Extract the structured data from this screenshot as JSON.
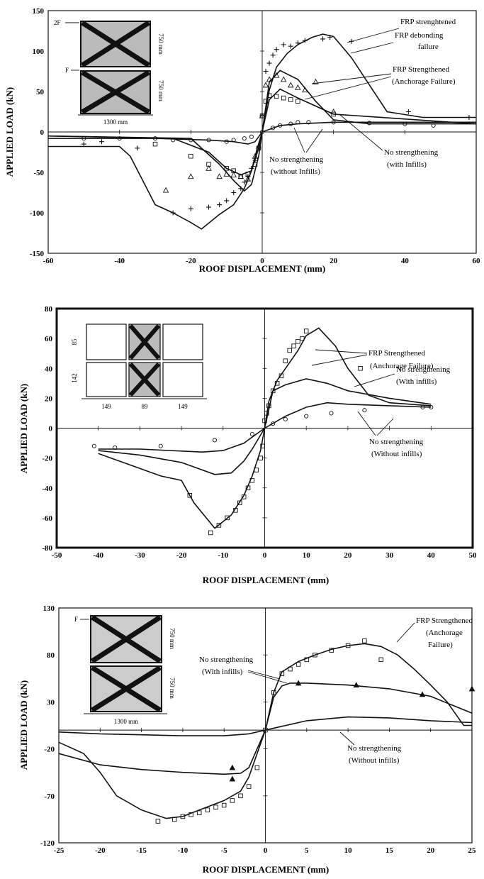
{
  "chart_data": [
    {
      "type": "line",
      "xlabel": "ROOF DISPLACEMENT (mm)",
      "ylabel": "APPLIED LOAD (kN)",
      "xlim": [
        -60,
        60
      ],
      "ylim": [
        -150,
        150
      ],
      "xticks": [
        -60,
        -40,
        -20,
        0,
        20,
        40,
        60
      ],
      "yticks": [
        150,
        100,
        50,
        0,
        -50,
        -100,
        -150
      ],
      "annotations": [
        "FRP strenghtened",
        "FRP debonding",
        "failure",
        "FRP Strengthened",
        "(Anchorage Failure)",
        "No strengthening",
        "(with Infills)",
        "No strengthening",
        "(without Infills)"
      ],
      "inset": {
        "labels": [
          "2F",
          "F",
          "750 mm",
          "750 mm",
          "1300 mm"
        ]
      },
      "series": [
        {
          "marker": "none",
          "x": [
            -60,
            -40,
            -37,
            -30,
            -25,
            -20,
            -17,
            -12,
            -8,
            -5,
            -3,
            -1.5,
            0,
            2,
            4,
            7,
            10,
            14,
            17,
            20,
            25,
            35,
            45,
            60
          ],
          "y": [
            -18,
            -18,
            -30,
            -90,
            -100,
            -112,
            -120,
            -102,
            -90,
            -70,
            -48,
            -22,
            0,
            52,
            80,
            97,
            108,
            117,
            121,
            118,
            92,
            25,
            18,
            18
          ]
        },
        {
          "marker": "none",
          "x": [
            -60,
            -20,
            -12,
            -8,
            -5,
            -3,
            -1,
            0,
            2,
            5,
            10,
            15,
            20,
            30,
            60
          ],
          "y": [
            -5,
            -8,
            -40,
            -60,
            -73,
            -65,
            -30,
            0,
            62,
            76,
            65,
            38,
            15,
            10,
            10
          ]
        },
        {
          "marker": "none",
          "x": [
            -60,
            -25,
            -15,
            -10,
            -6,
            -3,
            -1,
            0,
            2,
            5,
            10,
            20,
            60
          ],
          "y": [
            -5,
            -8,
            -25,
            -45,
            -53,
            -48,
            -20,
            0,
            40,
            53,
            42,
            22,
            10
          ]
        },
        {
          "marker": "none",
          "x": [
            -60,
            -30,
            -15,
            -8,
            -4,
            -2,
            0,
            5,
            10,
            20,
            60
          ],
          "y": [
            -8,
            -8,
            -10,
            -12,
            -15,
            -12,
            0,
            8,
            10,
            12,
            12
          ]
        },
        {
          "marker": "plus",
          "x": [
            -50,
            -45,
            -35,
            -25,
            -20,
            -15,
            -12,
            -10,
            -8,
            -6,
            -5,
            -4,
            -3,
            -2,
            -1,
            0,
            1,
            2,
            3,
            4,
            6,
            8,
            10,
            12,
            17,
            19,
            25,
            41,
            58
          ],
          "y": [
            -15,
            -12,
            -20,
            -100,
            -95,
            -93,
            -90,
            -85,
            -75,
            -70,
            -62,
            -55,
            -45,
            -35,
            -20,
            20,
            75,
            85,
            95,
            102,
            108,
            106,
            110,
            113,
            115,
            117,
            112,
            25,
            18
          ]
        },
        {
          "marker": "triangle",
          "x": [
            -27,
            -20,
            -15,
            -12,
            -10,
            -8,
            -6,
            -4,
            -2,
            0,
            1,
            2,
            4,
            6,
            8,
            10,
            12,
            15,
            20
          ],
          "y": [
            -72,
            -55,
            -45,
            -55,
            -52,
            -53,
            -55,
            -58,
            -30,
            20,
            58,
            65,
            70,
            65,
            58,
            55,
            52,
            62,
            25
          ]
        },
        {
          "marker": "square",
          "x": [
            -30,
            -20,
            -15,
            -10,
            -8,
            -6,
            -4,
            -2,
            -1,
            0,
            1,
            2,
            4,
            6,
            8,
            10,
            20
          ],
          "y": [
            -15,
            -30,
            -40,
            -45,
            -48,
            -55,
            -52,
            -40,
            -20,
            20,
            38,
            45,
            44,
            42,
            40,
            38,
            22
          ]
        },
        {
          "marker": "circle",
          "x": [
            -50,
            -40,
            -30,
            -25,
            -20,
            -15,
            -10,
            -8,
            -5,
            -3,
            0,
            3,
            5,
            8,
            10,
            13,
            20,
            30,
            40,
            48
          ],
          "y": [
            -8,
            -8,
            -8,
            -10,
            -10,
            -10,
            -12,
            -10,
            -8,
            -6,
            0,
            5,
            8,
            10,
            12,
            12,
            12,
            11,
            10,
            8
          ]
        }
      ]
    },
    {
      "type": "line",
      "xlabel": "ROOF DISPLACEMENT (mm)",
      "ylabel": "APPLIED LOAD (kN)",
      "xlim": [
        -50,
        50
      ],
      "ylim": [
        -80,
        80
      ],
      "xticks": [
        -50,
        -40,
        -30,
        -20,
        -10,
        0,
        10,
        20,
        30,
        40,
        50
      ],
      "yticks": [
        80,
        60,
        40,
        20,
        0,
        -20,
        -40,
        -60,
        -80
      ],
      "annotations": [
        "FRP Strengthened",
        "(Anchorage Failure)",
        "No strengthening",
        "(With infills)",
        "No strengthening",
        "(Without infills)"
      ],
      "inset": {
        "labels": [
          "85",
          "142",
          "149",
          "89",
          "149"
        ]
      },
      "series": [
        {
          "marker": "none",
          "x": [
            -40,
            -25,
            -20,
            -17,
            -12,
            -8,
            -5,
            -3,
            -1,
            0,
            1,
            3,
            5,
            8,
            10,
            13,
            17,
            20,
            25,
            30,
            35,
            40
          ],
          "y": [
            -17,
            -32,
            -35,
            -50,
            -67,
            -58,
            -45,
            -32,
            -15,
            0,
            18,
            32,
            40,
            52,
            62,
            67,
            55,
            40,
            22,
            17,
            16,
            15
          ]
        },
        {
          "marker": "none",
          "x": [
            -40,
            -30,
            -20,
            -12,
            -8,
            -5,
            -3,
            0,
            2,
            5,
            10,
            15,
            20,
            30,
            40
          ],
          "y": [
            -15,
            -18,
            -23,
            -31,
            -30,
            -22,
            -14,
            0,
            25,
            29,
            33,
            30,
            25,
            20,
            16
          ]
        },
        {
          "marker": "none",
          "x": [
            -40,
            -30,
            -15,
            -10,
            -5,
            -2,
            0,
            5,
            10,
            15,
            20,
            30,
            40
          ],
          "y": [
            -14,
            -14,
            -16,
            -15,
            -10,
            -4,
            0,
            8,
            14,
            17,
            16,
            15,
            14
          ]
        },
        {
          "marker": "square",
          "x": [
            -18,
            -13,
            -11,
            -9,
            -7,
            -6,
            -5,
            -4,
            -3,
            -2,
            -1,
            -0.5,
            0,
            0.5,
            1,
            2,
            3,
            4,
            5,
            6,
            7,
            8,
            9,
            10,
            23
          ],
          "y": [
            -45,
            -70,
            -65,
            -60,
            -55,
            -50,
            -46,
            -40,
            -35,
            -28,
            -20,
            -12,
            5,
            10,
            15,
            25,
            30,
            35,
            45,
            52,
            55,
            58,
            60,
            65,
            40
          ]
        },
        {
          "marker": "circle",
          "x": [
            -41,
            -36,
            -25,
            -12,
            -3,
            2,
            5,
            10,
            16,
            24,
            38,
            40
          ],
          "y": [
            -12,
            -13,
            -12,
            -8,
            -4,
            3,
            6,
            8,
            10,
            12,
            14,
            14
          ]
        }
      ]
    },
    {
      "type": "line",
      "xlabel": "ROOF DISPLACEMENT (mm)",
      "ylabel": "APPLIED LOAD (kN)",
      "xlim": [
        -25,
        25
      ],
      "ylim": [
        -120,
        130
      ],
      "xticks": [
        -25,
        -20,
        -15,
        -10,
        -5,
        0,
        5,
        10,
        15,
        20,
        25
      ],
      "yticks": [
        130,
        80,
        30,
        -20,
        -70,
        -120
      ],
      "annotations": [
        "FRP Strengthened",
        "(Anchorage",
        "Failure)",
        "No strengthening",
        "(With infills)",
        "No strengthening",
        "(Without infills)"
      ],
      "inset": {
        "labels": [
          "F",
          "750 mm",
          "750 mm",
          "1300 mm"
        ]
      },
      "series": [
        {
          "marker": "none",
          "x": [
            -25,
            -22,
            -20,
            -18,
            -15,
            -12,
            -10,
            -8,
            -5,
            -3,
            -2,
            -1,
            0,
            1,
            2,
            4,
            6,
            8,
            10,
            12,
            14,
            16,
            18,
            20,
            22,
            24,
            25
          ],
          "y": [
            -13,
            -25,
            -45,
            -70,
            -85,
            -94,
            -92,
            -85,
            -75,
            -65,
            -50,
            -25,
            0,
            40,
            62,
            73,
            80,
            86,
            90,
            92,
            89,
            80,
            65,
            48,
            30,
            5,
            5
          ]
        },
        {
          "marker": "none",
          "x": [
            -25,
            -20,
            -15,
            -10,
            -5,
            -3,
            -2,
            -1,
            0,
            1,
            2,
            3,
            5,
            10,
            15,
            20,
            25
          ],
          "y": [
            -25,
            -37,
            -42,
            -45,
            -47,
            -46,
            -40,
            -20,
            0,
            35,
            47,
            50,
            50,
            48,
            44,
            36,
            18
          ]
        },
        {
          "marker": "none",
          "x": [
            -25,
            -20,
            -15,
            -10,
            -5,
            -2,
            0,
            5,
            10,
            15,
            20,
            25
          ],
          "y": [
            -2,
            -4,
            -5,
            -6,
            -6,
            -4,
            0,
            10,
            14,
            13,
            10,
            8
          ]
        },
        {
          "marker": "square",
          "x": [
            -13,
            -11,
            -10,
            -9,
            -8,
            -7,
            -6,
            -5,
            -4,
            -3,
            -2,
            -1,
            0,
            1,
            2,
            3,
            4,
            5,
            6,
            8,
            10,
            12,
            14
          ],
          "y": [
            -97,
            -95,
            -92,
            -90,
            -88,
            -85,
            -82,
            -80,
            -75,
            -70,
            -60,
            -40,
            0,
            40,
            60,
            65,
            70,
            75,
            80,
            85,
            90,
            95,
            75
          ]
        },
        {
          "marker": "triangle",
          "x": [
            -4,
            -4,
            4,
            11,
            19,
            25
          ],
          "y": [
            -40,
            -52,
            50,
            48,
            38,
            44
          ]
        }
      ]
    }
  ]
}
